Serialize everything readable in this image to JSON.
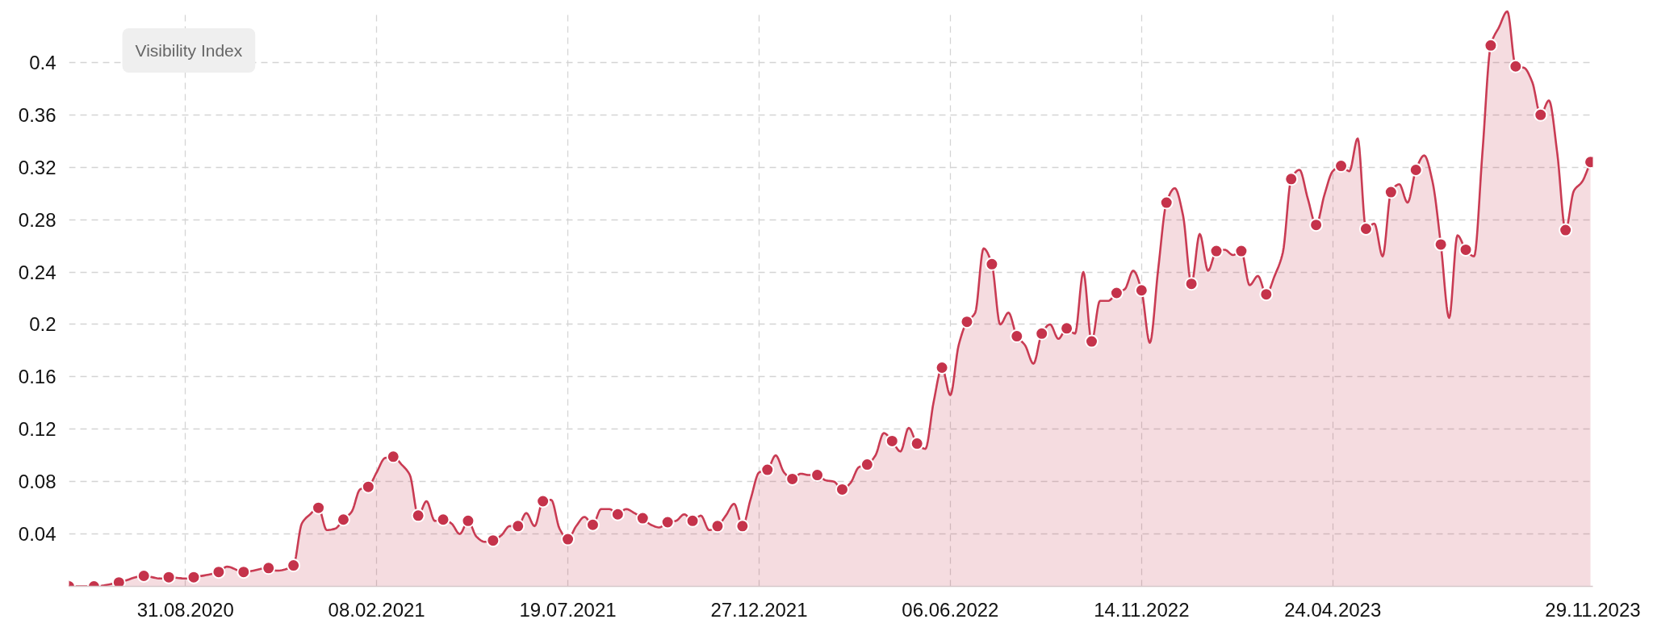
{
  "chart_data": {
    "type": "area",
    "title": "Visibility Index",
    "xlim": [
      "2020-05-25",
      "2023-11-29"
    ],
    "xticks": [
      {
        "value": "2020-08-31",
        "label": "31.08.2020"
      },
      {
        "value": "2021-02-08",
        "label": "08.02.2021"
      },
      {
        "value": "2021-07-19",
        "label": "19.07.2021"
      },
      {
        "value": "2021-12-27",
        "label": "27.12.2021"
      },
      {
        "value": "2022-06-06",
        "label": "06.06.2022"
      },
      {
        "value": "2022-11-14",
        "label": "14.11.2022"
      },
      {
        "value": "2023-04-24",
        "label": "24.04.2023"
      },
      {
        "value": "2023-11-29",
        "label": "29.11.2023"
      }
    ],
    "ylim": [
      0,
      0.44
    ],
    "yticks": [
      0.04,
      0.08,
      0.12,
      0.16,
      0.2,
      0.24,
      0.28,
      0.32,
      0.36,
      0.4
    ],
    "grid": true,
    "series": [
      {
        "color": "#c93b53",
        "x": [
          "2020-05-25",
          "2020-06-15",
          "2020-07-06",
          "2020-07-27",
          "2020-08-10",
          "2020-08-17",
          "2020-08-31",
          "2020-09-07",
          "2020-09-28",
          "2020-10-05",
          "2020-10-19",
          "2020-11-09",
          "2020-11-16",
          "2020-11-30",
          "2020-12-07",
          "2020-12-14",
          "2020-12-21",
          "2020-12-28",
          "2021-01-04",
          "2021-01-11",
          "2021-01-18",
          "2021-01-25",
          "2021-02-01",
          "2021-02-08",
          "2021-02-15",
          "2021-02-22",
          "2021-03-01",
          "2021-03-08",
          "2021-03-15",
          "2021-03-22",
          "2021-03-29",
          "2021-04-05",
          "2021-04-12",
          "2021-04-19",
          "2021-04-26",
          "2021-05-03",
          "2021-05-10",
          "2021-05-17",
          "2021-05-24",
          "2021-05-31",
          "2021-06-07",
          "2021-06-14",
          "2021-06-21",
          "2021-06-28",
          "2021-07-05",
          "2021-07-12",
          "2021-07-19",
          "2021-07-26",
          "2021-08-02",
          "2021-08-09",
          "2021-08-16",
          "2021-08-23",
          "2021-08-30",
          "2021-09-06",
          "2021-09-13",
          "2021-09-20",
          "2021-09-27",
          "2021-10-04",
          "2021-10-11",
          "2021-10-18",
          "2021-10-25",
          "2021-11-01",
          "2021-11-08",
          "2021-11-15",
          "2021-11-22",
          "2021-11-29",
          "2021-12-06",
          "2021-12-13",
          "2021-12-20",
          "2021-12-27",
          "2022-01-03",
          "2022-01-10",
          "2022-01-17",
          "2022-01-24",
          "2022-01-31",
          "2022-02-07",
          "2022-02-14",
          "2022-02-21",
          "2022-02-28",
          "2022-03-07",
          "2022-03-14",
          "2022-03-21",
          "2022-03-28",
          "2022-04-04",
          "2022-04-11",
          "2022-04-18",
          "2022-04-25",
          "2022-05-02",
          "2022-05-09",
          "2022-05-16",
          "2022-05-23",
          "2022-05-30",
          "2022-06-06",
          "2022-06-13",
          "2022-06-20",
          "2022-06-27",
          "2022-07-04",
          "2022-07-11",
          "2022-07-18",
          "2022-07-25",
          "2022-08-01",
          "2022-08-08",
          "2022-08-15",
          "2022-08-22",
          "2022-08-29",
          "2022-09-05",
          "2022-09-12",
          "2022-09-19",
          "2022-09-26",
          "2022-10-03",
          "2022-10-10",
          "2022-10-17",
          "2022-10-24",
          "2022-10-31",
          "2022-11-07",
          "2022-11-14",
          "2022-11-21",
          "2022-11-28",
          "2022-12-05",
          "2022-12-12",
          "2022-12-19",
          "2022-12-26",
          "2023-01-02",
          "2023-01-09",
          "2023-01-16",
          "2023-01-23",
          "2023-01-30",
          "2023-02-06",
          "2023-02-13",
          "2023-02-20",
          "2023-02-27",
          "2023-03-06",
          "2023-03-13",
          "2023-03-20",
          "2023-03-27",
          "2023-04-03",
          "2023-04-10",
          "2023-04-17",
          "2023-04-24",
          "2023-05-01",
          "2023-05-08",
          "2023-05-15",
          "2023-05-22",
          "2023-05-29",
          "2023-06-05",
          "2023-06-12",
          "2023-06-19",
          "2023-06-26",
          "2023-07-03",
          "2023-07-10",
          "2023-07-17",
          "2023-07-24",
          "2023-07-31",
          "2023-08-07",
          "2023-08-14",
          "2023-08-21",
          "2023-08-28",
          "2023-09-04",
          "2023-09-11",
          "2023-09-18",
          "2023-09-25",
          "2023-10-02",
          "2023-10-09",
          "2023-10-16",
          "2023-10-23",
          "2023-10-30",
          "2023-11-06",
          "2023-11-13",
          "2023-11-20",
          "2023-11-27"
        ],
        "values": [
          0,
          0,
          0.003,
          0.008,
          0.006,
          0.007,
          0.006,
          0.007,
          0.011,
          0.015,
          0.011,
          0.014,
          0.012,
          0.016,
          0.048,
          0.055,
          0.06,
          0.043,
          0.044,
          0.051,
          0.057,
          0.074,
          0.076,
          0.087,
          0.098,
          0.099,
          0.093,
          0.085,
          0.054,
          0.065,
          0.05,
          0.051,
          0.048,
          0.04,
          0.05,
          0.038,
          0.034,
          0.035,
          0.039,
          0.046,
          0.046,
          0.056,
          0.046,
          0.065,
          0.066,
          0.044,
          0.036,
          0.046,
          0.053,
          0.047,
          0.059,
          0.059,
          0.055,
          0.059,
          0.056,
          0.052,
          0.047,
          0.045,
          0.049,
          0.05,
          0.055,
          0.05,
          0.054,
          0.043,
          0.046,
          0.054,
          0.063,
          0.046,
          0.067,
          0.087,
          0.089,
          0.1,
          0.087,
          0.082,
          0.086,
          0.085,
          0.085,
          0.081,
          0.08,
          0.074,
          0.079,
          0.091,
          0.093,
          0.1,
          0.117,
          0.111,
          0.103,
          0.121,
          0.109,
          0.105,
          0.141,
          0.167,
          0.146,
          0.184,
          0.202,
          0.209,
          0.258,
          0.246,
          0.2,
          0.209,
          0.191,
          0.184,
          0.17,
          0.193,
          0.2,
          0.189,
          0.197,
          0.193,
          0.24,
          0.187,
          0.218,
          0.218,
          0.224,
          0.227,
          0.241,
          0.226,
          0.186,
          0.242,
          0.293,
          0.304,
          0.283,
          0.231,
          0.269,
          0.241,
          0.256,
          0.257,
          0.253,
          0.256,
          0.23,
          0.237,
          0.223,
          0.237,
          0.255,
          0.311,
          0.318,
          0.296,
          0.276,
          0.299,
          0.317,
          0.321,
          0.317,
          0.342,
          0.273,
          0.277,
          0.252,
          0.301,
          0.307,
          0.293,
          0.318,
          0.329,
          0.309,
          0.261,
          0.205,
          0.268,
          0.257,
          0.252,
          0.331,
          0.413,
          0.427,
          0.439,
          0.397,
          0.396,
          0.385,
          0.36,
          0.371,
          0.331,
          0.272,
          0.302,
          0.309,
          0.324
        ]
      },
      {
        "type": "scatter",
        "color": "#c5334b",
        "marker": "circle",
        "x": [
          "2020-05-25",
          "2020-06-15",
          "2020-07-06",
          "2020-07-27",
          "2020-08-17",
          "2020-09-07",
          "2020-09-28",
          "2020-10-19",
          "2020-11-09",
          "2020-11-30",
          "2020-12-21",
          "2021-01-11",
          "2021-02-01",
          "2021-02-22",
          "2021-03-15",
          "2021-04-05",
          "2021-04-26",
          "2021-05-17",
          "2021-06-07",
          "2021-06-28",
          "2021-07-19",
          "2021-08-09",
          "2021-08-30",
          "2021-09-20",
          "2021-10-11",
          "2021-11-01",
          "2021-11-22",
          "2021-12-13",
          "2022-01-03",
          "2022-01-24",
          "2022-02-14",
          "2022-03-07",
          "2022-03-28",
          "2022-04-18",
          "2022-05-09",
          "2022-05-30",
          "2022-06-20",
          "2022-07-11",
          "2022-08-01",
          "2022-08-22",
          "2022-09-12",
          "2022-10-03",
          "2022-10-24",
          "2022-11-14",
          "2022-12-05",
          "2022-12-26",
          "2023-01-16",
          "2023-02-06",
          "2023-02-27",
          "2023-03-20",
          "2023-04-10",
          "2023-05-01",
          "2023-05-22",
          "2023-06-12",
          "2023-07-03",
          "2023-07-24",
          "2023-08-14",
          "2023-09-04",
          "2023-09-25",
          "2023-10-16",
          "2023-11-06",
          "2023-11-27"
        ],
        "values": [
          0,
          0,
          0.003,
          0.008,
          0.007,
          0.007,
          0.011,
          0.011,
          0.014,
          0.016,
          0.06,
          0.051,
          0.076,
          0.099,
          0.054,
          0.051,
          0.05,
          0.035,
          0.046,
          0.065,
          0.036,
          0.047,
          0.055,
          0.052,
          0.049,
          0.05,
          0.046,
          0.046,
          0.089,
          0.082,
          0.085,
          0.074,
          0.093,
          0.111,
          0.109,
          0.167,
          0.202,
          0.246,
          0.191,
          0.193,
          0.197,
          0.187,
          0.224,
          0.226,
          0.293,
          0.231,
          0.256,
          0.256,
          0.223,
          0.311,
          0.276,
          0.321,
          0.273,
          0.301,
          0.318,
          0.261,
          0.257,
          0.413,
          0.397,
          0.36,
          0.272,
          0.324
        ]
      }
    ]
  }
}
